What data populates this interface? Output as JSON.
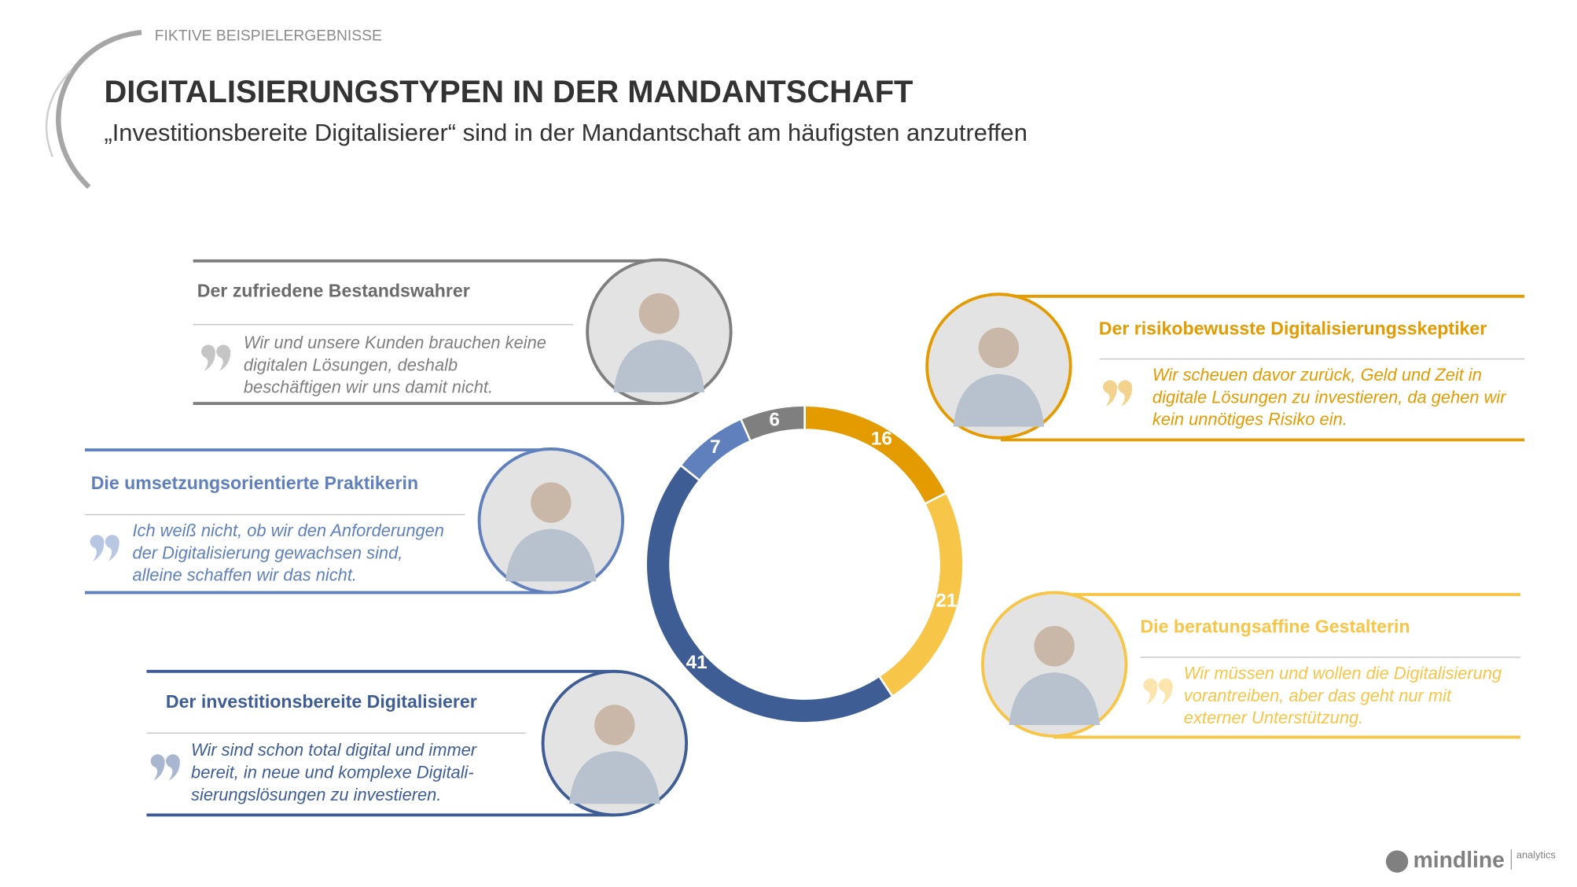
{
  "header": {
    "label": "FIKTIVE BEISPIELERGEBNISSE",
    "title": "DIGITALISIERUNGSTYPEN IN DER MANDANTSCHAFT",
    "subtitle": "„Investitionsbereite Digitalisierer“ sind in der Mandantschaft am häufigsten anzutreffen"
  },
  "chart_data": {
    "type": "donut",
    "categories": [
      "Der risikobewusste Digitalisierungsskeptiker",
      "Die beratungsaffine Gestalterin",
      "Der investitionsbereite Digitalisierer",
      "Die umsetzungsorientierte Praktikerin",
      "Der zufriedene Bestandswahrer"
    ],
    "values": [
      16,
      21,
      41,
      7,
      6
    ],
    "colors": [
      "#e39b00",
      "#f7c548",
      "#3e5d94",
      "#5f80bc",
      "#7f7f7f"
    ]
  },
  "quotes": [
    [
      "Wir scheuen davor zurück, Geld und Zeit in",
      "digitale Lösungen zu investieren, da gehen wir",
      "kein unnötiges Risiko ein."
    ],
    [
      "Wir müssen und wollen die Digitalisierung",
      "vorantreiben, aber das geht nur mit",
      "externer Unterstützung."
    ],
    [
      "Wir sind schon total digital und immer",
      "bereit, in neue und komplexe Digitali-",
      "sierungslösungen zu investieren."
    ],
    [
      "Ich weiß nicht, ob wir den Anforderungen",
      "der Digitalisierung gewachsen sind,",
      "alleine schaffen wir das nicht."
    ],
    [
      "Wir und unsere Kunden brauchen keine",
      "digitalen Lösungen, deshalb",
      "beschäftigen wir uns damit nicht."
    ]
  ],
  "logo": {
    "name": "mindline",
    "suffix": "analytics"
  }
}
